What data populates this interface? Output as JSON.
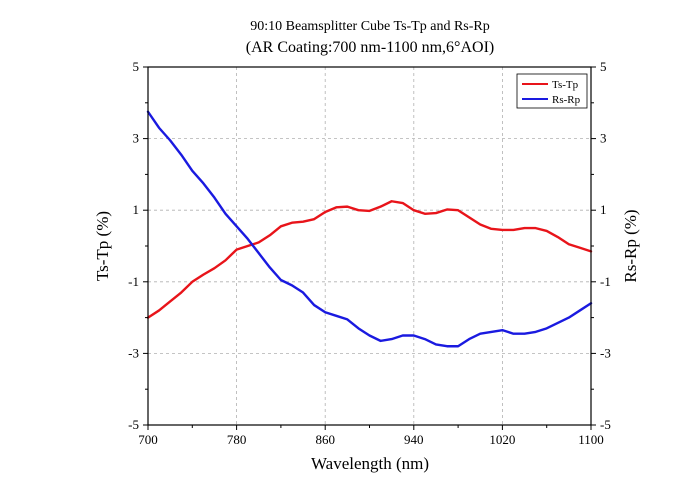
{
  "chart_data": {
    "type": "line",
    "title": "90:10 Beamsplitter Cube Ts-Tp and Rs-Rp",
    "subtitle": "(AR Coating:700 nm-1100 nm,6°AOI)",
    "xlabel": "Wavelength (nm)",
    "ylabel": "Ts-Tp (%)",
    "ylabel_right": "Rs-Rp (%)",
    "xlim": [
      700,
      1100
    ],
    "ylim": [
      -5,
      5
    ],
    "x_ticks": [
      700,
      780,
      860,
      940,
      1020,
      1100
    ],
    "y_ticks": [
      -5,
      -3,
      -1,
      1,
      3,
      5
    ],
    "grid": true,
    "legend_position": "top-right",
    "series": [
      {
        "name": "Ts-Tp",
        "color": "#e8141a",
        "x": [
          700,
          710,
          720,
          730,
          740,
          750,
          760,
          770,
          780,
          790,
          800,
          810,
          820,
          830,
          840,
          850,
          860,
          870,
          880,
          890,
          900,
          910,
          920,
          930,
          940,
          950,
          960,
          970,
          980,
          990,
          1000,
          1010,
          1020,
          1030,
          1040,
          1050,
          1060,
          1070,
          1080,
          1090,
          1100
        ],
        "values": [
          -2.0,
          -1.8,
          -1.55,
          -1.3,
          -1.0,
          -0.8,
          -0.62,
          -0.4,
          -0.1,
          0.0,
          0.1,
          0.3,
          0.55,
          0.65,
          0.68,
          0.75,
          0.95,
          1.08,
          1.1,
          1.0,
          0.98,
          1.1,
          1.25,
          1.2,
          1.0,
          0.9,
          0.92,
          1.02,
          1.0,
          0.8,
          0.6,
          0.48,
          0.45,
          0.45,
          0.5,
          0.5,
          0.42,
          0.25,
          0.05,
          -0.05,
          -0.15
        ]
      },
      {
        "name": "Rs-Rp",
        "color": "#1a1ae0",
        "x": [
          700,
          710,
          720,
          730,
          740,
          750,
          760,
          770,
          780,
          790,
          800,
          810,
          820,
          830,
          840,
          850,
          860,
          870,
          880,
          890,
          900,
          910,
          920,
          930,
          940,
          950,
          960,
          970,
          980,
          990,
          1000,
          1010,
          1020,
          1030,
          1040,
          1050,
          1060,
          1070,
          1080,
          1090,
          1100
        ],
        "values": [
          3.75,
          3.3,
          2.95,
          2.55,
          2.1,
          1.75,
          1.35,
          0.9,
          0.55,
          0.2,
          -0.2,
          -0.6,
          -0.95,
          -1.1,
          -1.3,
          -1.65,
          -1.85,
          -1.95,
          -2.05,
          -2.3,
          -2.5,
          -2.65,
          -2.6,
          -2.5,
          -2.5,
          -2.6,
          -2.75,
          -2.8,
          -2.8,
          -2.6,
          -2.45,
          -2.4,
          -2.35,
          -2.45,
          -2.45,
          -2.4,
          -2.3,
          -2.15,
          -2.0,
          -1.8,
          -1.6
        ]
      }
    ]
  }
}
